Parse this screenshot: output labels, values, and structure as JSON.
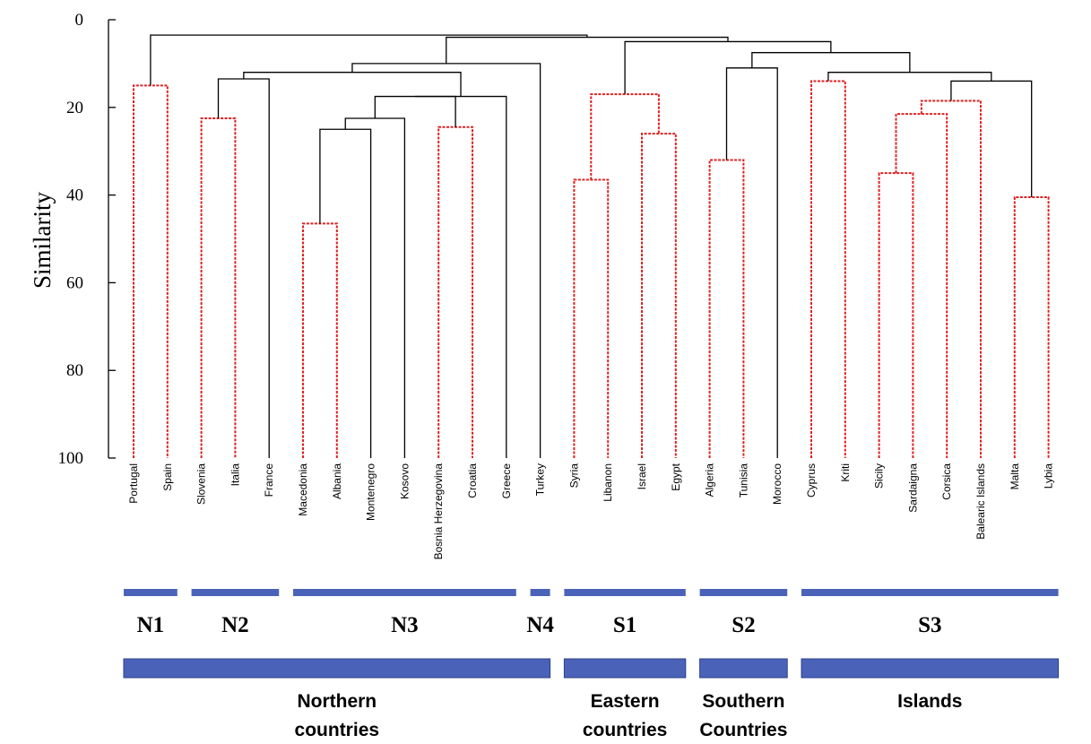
{
  "chart_data": {
    "type": "dendrogram",
    "ylabel": "Similarity",
    "yticks": [
      0,
      20,
      40,
      60,
      80,
      100
    ],
    "ylim": [
      0,
      100
    ],
    "leaves": [
      "Portugal",
      "Spain",
      "Slovenia",
      "Italia",
      "France",
      "Macedonia",
      "Albania",
      "Montenegro",
      "Kosovo",
      "Bosnia Herzegovina",
      "Croatia",
      "Greece",
      "Turkey",
      "Syria",
      "Libanon",
      "Israel",
      "Egypt",
      "Algeria",
      "Tunisia",
      "Morocco",
      "Cyprus",
      "Kriti",
      "Sicily",
      "Sardaigna",
      "Corsica",
      "Balearic Islands",
      "Malta",
      "Lybia"
    ],
    "merges": [
      {
        "id": "Mac_Alb",
        "a": "Macedonia",
        "b": "Albania",
        "sim": 46.5,
        "color": "red"
      },
      {
        "id": "Mal_Lyb",
        "a": "Malta",
        "b": "Lybia",
        "sim": 40.5,
        "color": "red"
      },
      {
        "id": "Syr_Lib",
        "a": "Syria",
        "b": "Libanon",
        "sim": 36.5,
        "color": "red"
      },
      {
        "id": "Sic_Sar",
        "a": "Sicily",
        "b": "Sardaigna",
        "sim": 35,
        "color": "red"
      },
      {
        "id": "Alg_Tun",
        "a": "Algeria",
        "b": "Tunisia",
        "sim": 32,
        "color": "red"
      },
      {
        "id": "Isr_Egy",
        "a": "Israel",
        "b": "Egypt",
        "sim": 26,
        "color": "red"
      },
      {
        "id": "MA_Mon",
        "a": "Mac_Alb",
        "b": "Montenegro",
        "sim": 25,
        "color": "black"
      },
      {
        "id": "Bos_Cro",
        "a": "Bosnia Herzegovina",
        "b": "Croatia",
        "sim": 24.5,
        "color": "red"
      },
      {
        "id": "MAM_Kos",
        "a": "MA_Mon",
        "b": "Kosovo",
        "sim": 22.5,
        "color": "black"
      },
      {
        "id": "Slo_Ita",
        "a": "Slovenia",
        "b": "Italia",
        "sim": 22.5,
        "color": "red"
      },
      {
        "id": "SS_Cor",
        "a": "Sic_Sar",
        "b": "Corsica",
        "sim": 21.5,
        "color": "red"
      },
      {
        "id": "SSC_Bal",
        "a": "SS_Cor",
        "b": "Balearic Islands",
        "sim": 18.5,
        "color": "red"
      },
      {
        "id": "NA_BC",
        "a": "MAM_Kos",
        "b": "Bos_Cro",
        "sim": 17.5,
        "color": "black"
      },
      {
        "id": "NAB_Gre",
        "a": "NA_BC",
        "b": "Greece",
        "sim": 17.5,
        "color": "black"
      },
      {
        "id": "East",
        "a": "Syr_Lib",
        "b": "Isr_Egy",
        "sim": 17,
        "color": "red"
      },
      {
        "id": "Por_Spa",
        "a": "Portugal",
        "b": "Spain",
        "sim": 15,
        "color": "red"
      },
      {
        "id": "SSCB_ML",
        "a": "SSC_Bal",
        "b": "Mal_Lyb",
        "sim": 14,
        "color": "black"
      },
      {
        "id": "Cyp_Kri",
        "a": "Cyprus",
        "b": "Kriti",
        "sim": 14,
        "color": "red"
      },
      {
        "id": "SI_Fra",
        "a": "Slo_Ita",
        "b": "France",
        "sim": 13.5,
        "color": "black"
      },
      {
        "id": "AT_Mor",
        "a": "Alg_Tun",
        "b": "Morocco",
        "sim": 11,
        "color": "black"
      },
      {
        "id": "Islands",
        "a": "Cyp_Kri",
        "b": "SSCB_ML",
        "sim": 12,
        "color": "black"
      },
      {
        "id": "N2N3",
        "a": "SI_Fra",
        "b": "NAB_Gre",
        "sim": 12,
        "color": "black"
      },
      {
        "id": "N234",
        "a": "N2N3",
        "b": "Turkey",
        "sim": 10,
        "color": "black"
      },
      {
        "id": "South",
        "a": "AT_Mor",
        "b": "Islands",
        "sim": 7.5,
        "color": "black"
      },
      {
        "id": "SouthE",
        "a": "East",
        "b": "South",
        "sim": 5,
        "color": "black"
      },
      {
        "id": "Mid",
        "a": "N234",
        "b": "SouthE",
        "sim": 4,
        "color": "black"
      },
      {
        "id": "Root",
        "a": "Por_Spa",
        "b": "Mid",
        "sim": 3.5,
        "color": "black"
      }
    ]
  },
  "clusters": [
    {
      "label": "N1",
      "from": 0,
      "to": 1
    },
    {
      "label": "N2",
      "from": 2,
      "to": 4
    },
    {
      "label": "N3",
      "from": 5,
      "to": 11
    },
    {
      "label": "N4",
      "from": 12,
      "to": 12
    },
    {
      "label": "S1",
      "from": 13,
      "to": 16
    },
    {
      "label": "S2",
      "from": 17,
      "to": 19
    },
    {
      "label": "S3",
      "from": 20,
      "to": 27
    }
  ],
  "regions": [
    {
      "line1": "Northern",
      "line2": "countries",
      "from": 0,
      "to": 12
    },
    {
      "line1": "Eastern",
      "line2": "countries",
      "from": 13,
      "to": 16
    },
    {
      "line1": "Southern",
      "line2": "Countries",
      "from": 17,
      "to": 19
    },
    {
      "line1": "",
      "line2": "Islands",
      "from": 20,
      "to": 27
    }
  ],
  "colors": {
    "red": "#e02020",
    "black": "#000000",
    "bar": "#4a63b8",
    "bar_edge": "#2c3f8a"
  }
}
